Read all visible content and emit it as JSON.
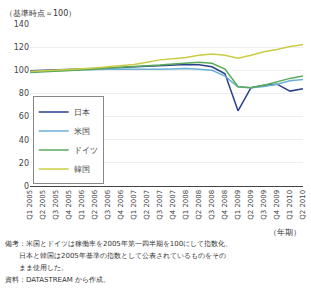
{
  "chart_data": {
    "type": "line",
    "ylabel": "（基準時点＝100）",
    "xlabel": "（年期）",
    "categories": [
      "Q1 2005",
      "Q2 2005",
      "Q3 2005",
      "Q4 2005",
      "Q1 2006",
      "Q2 2006",
      "Q3 2006",
      "Q4 2006",
      "Q1 2007",
      "Q2 2007",
      "Q3 2007",
      "Q4 2007",
      "Q1 2008",
      "Q2 2008",
      "Q3 2008",
      "Q4 2008",
      "Q1 2009",
      "Q2 2009",
      "Q3 2009",
      "Q4 2009",
      "Q1 2010",
      "Q2 2010"
    ],
    "series": [
      {
        "name": "日本",
        "color": "#2b3f8c",
        "values": [
          99.5,
          99.8,
          100.3,
          101.0,
          101.2,
          101.5,
          102.0,
          102.5,
          102.8,
          103.0,
          104.0,
          104.5,
          105.0,
          104.8,
          103.0,
          97.0,
          65.0,
          85.0,
          87.0,
          88.0,
          82.0,
          84.0
        ]
      },
      {
        "name": "米国",
        "color": "#6bafd6",
        "values": [
          99.0,
          99.2,
          99.5,
          100.0,
          100.5,
          100.8,
          101.0,
          101.2,
          101.0,
          100.8,
          101.0,
          101.2,
          101.5,
          101.0,
          100.0,
          95.0,
          85.5,
          85.0,
          86.0,
          88.0,
          91.0,
          92.0
        ]
      },
      {
        "name": "ドイツ",
        "color": "#5aaa5a",
        "values": [
          98.0,
          98.5,
          99.0,
          100.0,
          100.5,
          101.0,
          102.0,
          102.5,
          103.0,
          103.5,
          104.5,
          105.5,
          106.0,
          107.0,
          106.0,
          101.0,
          86.0,
          85.0,
          87.0,
          90.0,
          93.0,
          95.0
        ]
      },
      {
        "name": "韓国",
        "color": "#cccc44",
        "values": [
          99.0,
          99.5,
          100.0,
          100.5,
          101.0,
          102.0,
          103.0,
          104.0,
          105.0,
          107.0,
          109.0,
          110.0,
          111.0,
          113.0,
          114.0,
          113.0,
          110.5,
          113.0,
          116.0,
          118.0,
          120.5,
          122.0
        ]
      }
    ],
    "ylim": [
      0,
      140
    ],
    "yticks": [
      0,
      20,
      40,
      60,
      80,
      100,
      120,
      140
    ],
    "grid": true,
    "legend": "lower left",
    "annotations": [
      "備考：米国とドイツは稼働率を2005年第一四半期を100にして指数化、",
      "　　日本と韓国は2005年基準の指数として公表されているものをその",
      "　　まま使用した。",
      "資料：DATASTREAM から作成。"
    ]
  }
}
